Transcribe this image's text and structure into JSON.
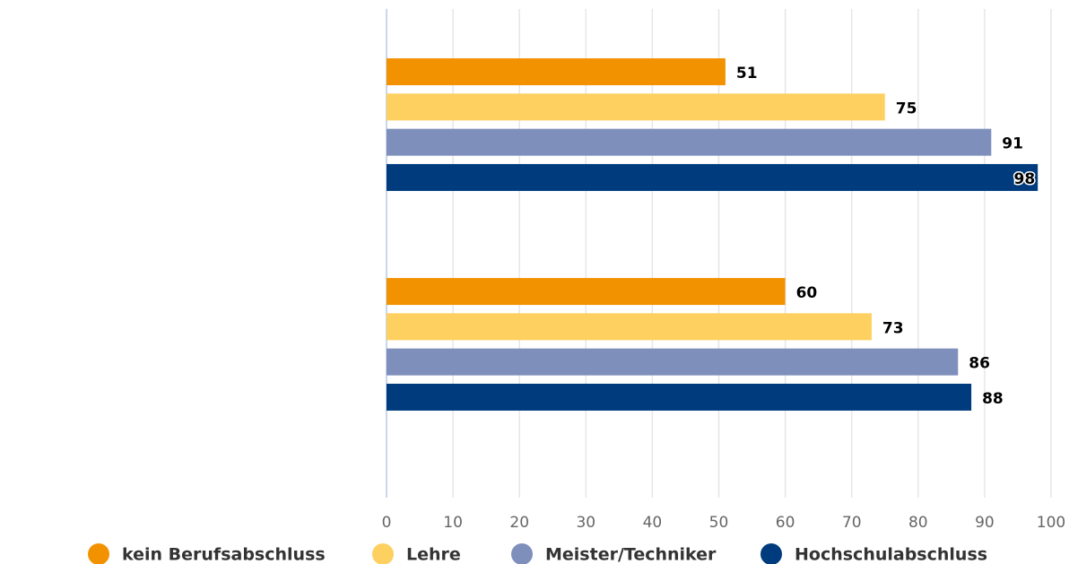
{
  "chart_data": {
    "type": "hbar",
    "categories": [
      null,
      null
    ],
    "series": [
      {
        "name": "kein Berufsabschluss",
        "color": "#f39200",
        "values": [
          51,
          60
        ]
      },
      {
        "name": "Lehre",
        "color": "#fdd060",
        "values": [
          75,
          73
        ]
      },
      {
        "name": "Meister/Techniker",
        "color": "#7f8fbb",
        "values": [
          91,
          86
        ]
      },
      {
        "name": "Hochschulabschluss",
        "color": "#003c7d",
        "values": [
          98,
          88
        ]
      }
    ],
    "xlim": [
      0,
      100
    ],
    "xticks": [
      0,
      10,
      20,
      30,
      40,
      50,
      60,
      70,
      80,
      90,
      100
    ],
    "grid": true,
    "legend": "bottom"
  }
}
